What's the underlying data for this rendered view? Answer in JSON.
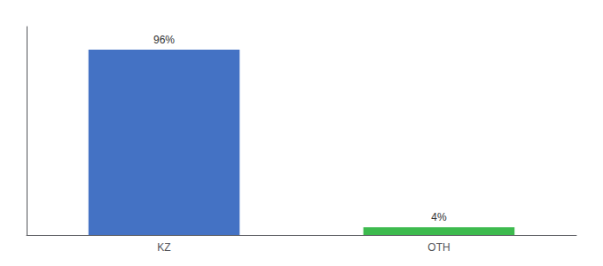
{
  "chart_data": {
    "type": "bar",
    "categories": [
      "KZ",
      "OTH"
    ],
    "values": [
      96,
      4
    ],
    "value_labels": [
      "96%",
      "4%"
    ],
    "data_labels": true,
    "colors": [
      "#4472c4",
      "#3dba4e"
    ],
    "ylim": [
      0,
      108
    ],
    "tick_labels": "x",
    "grid": false
  }
}
